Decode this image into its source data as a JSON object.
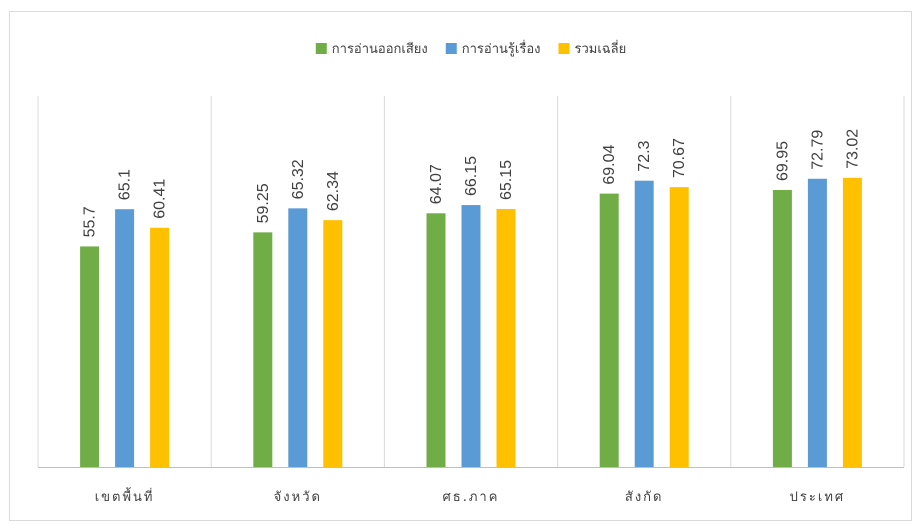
{
  "chart_data": {
    "type": "bar",
    "title": "",
    "xlabel": "",
    "ylabel": "",
    "ylim": [
      0,
      100
    ],
    "grid": "vertical category separators",
    "legend_position": "top",
    "categories": [
      "เขตพื้นที่",
      "จังหวัด",
      "ศธ.ภาค",
      "สังกัด",
      "ประเทศ"
    ],
    "series": [
      {
        "name": "การอ่านออกเสียง",
        "color": "#70ad47",
        "values": [
          55.7,
          59.25,
          64.07,
          69.04,
          69.95
        ]
      },
      {
        "name": "การอ่านรู้เรื่อง",
        "color": "#5b9bd5",
        "values": [
          65.1,
          65.32,
          66.15,
          72.3,
          72.79
        ]
      },
      {
        "name": "รวมเฉลี่ย",
        "color": "#ffc000",
        "values": [
          60.41,
          62.34,
          65.15,
          70.67,
          73.02
        ]
      }
    ]
  }
}
